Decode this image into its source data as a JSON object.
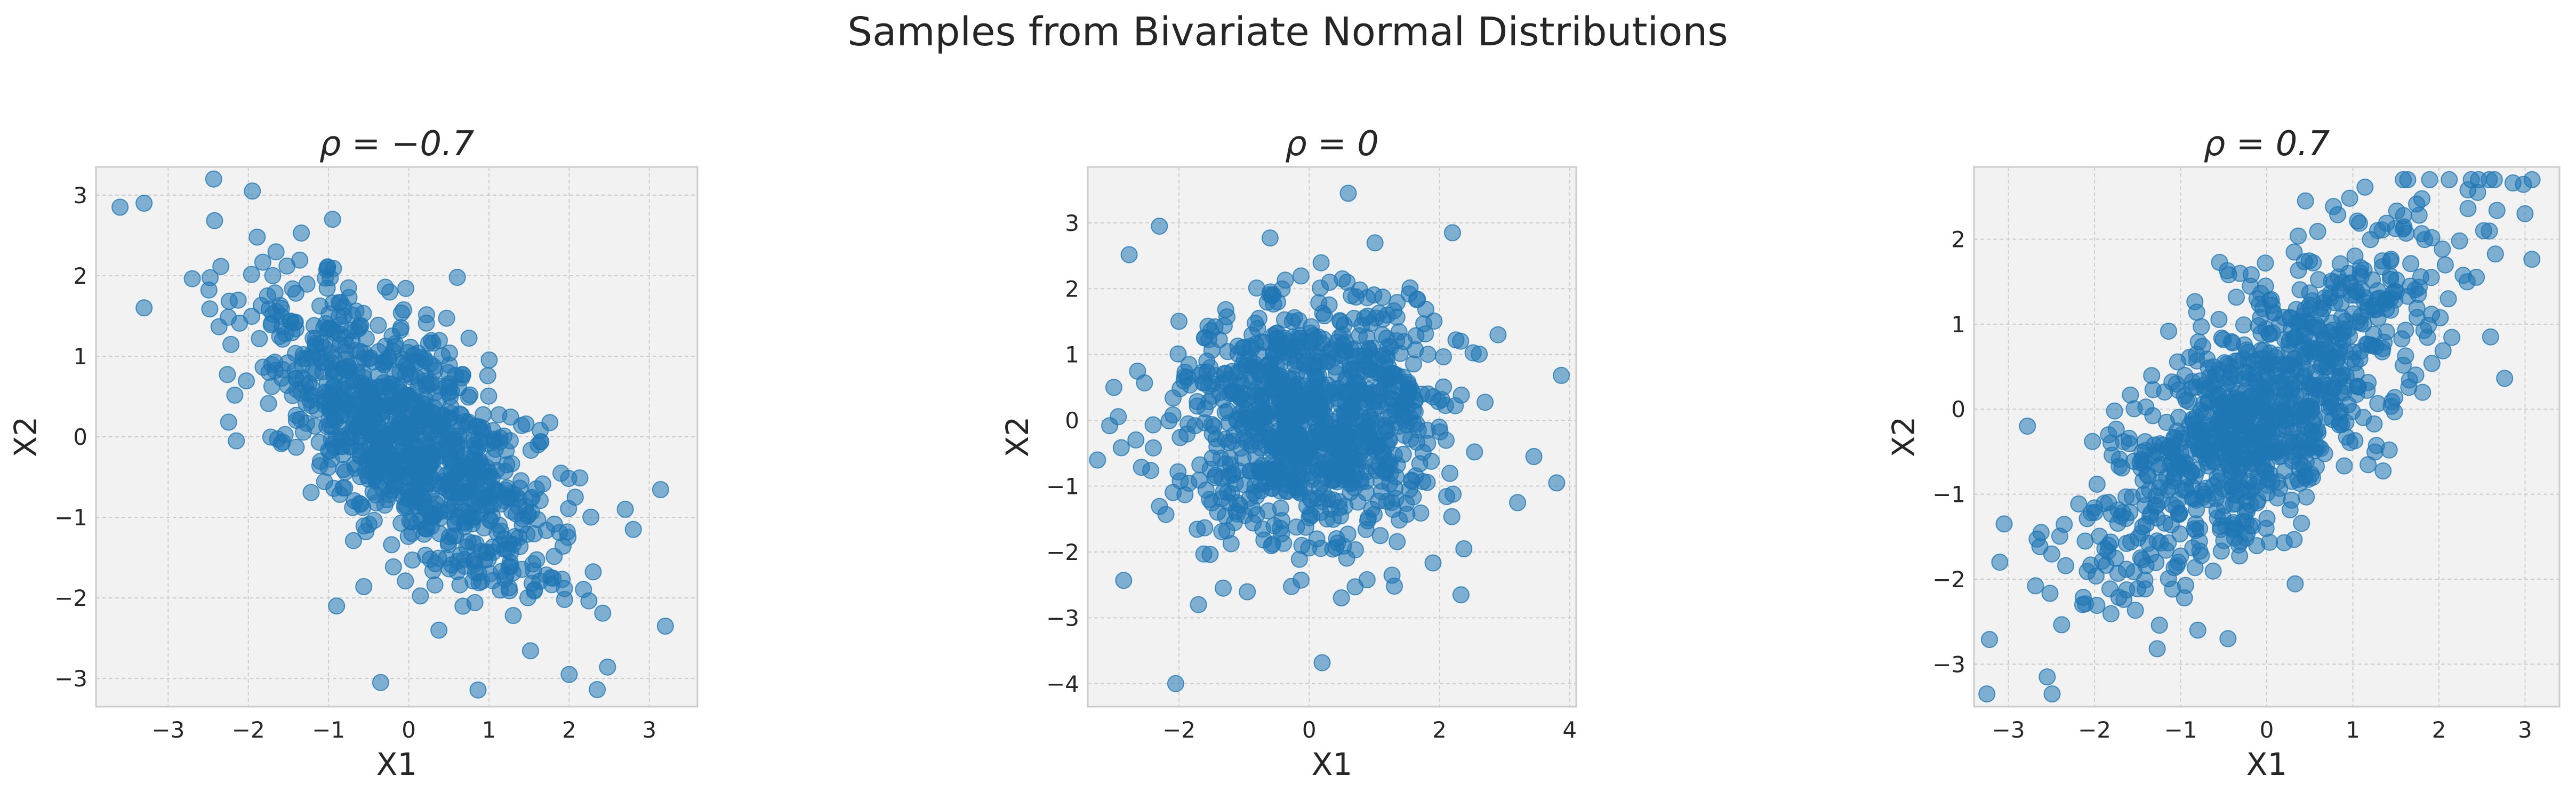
{
  "figure": {
    "suptitle": "Samples from Bivariate Normal Distributions",
    "background": "#ffffff",
    "axes_facecolor": "#f2f2f2",
    "grid_color": "#cccccc",
    "spine_color": "#cccccc",
    "point_color": "#1f77b4",
    "point_alpha": 0.55,
    "point_count_per_panel": 1000
  },
  "chart_data": [
    {
      "type": "scatter",
      "title": "ρ = −0.7",
      "rho": -0.7,
      "xlabel": "X1",
      "ylabel": "X2",
      "xlim": [
        -3.9,
        3.6
      ],
      "ylim": [
        -3.35,
        3.35
      ],
      "xticks": [
        -3,
        -2,
        -1,
        0,
        1,
        2,
        3
      ],
      "xtick_labels": [
        "−3",
        "−2",
        "−1",
        "0",
        "1",
        "2",
        "3"
      ],
      "yticks": [
        -3,
        -2,
        -1,
        0,
        1,
        2,
        3
      ],
      "ytick_labels": [
        "−3",
        "−2",
        "−1",
        "0",
        "1",
        "2",
        "3"
      ],
      "grid": true,
      "seed": 1,
      "outliers": [
        [
          -3.6,
          2.85
        ],
        [
          -3.3,
          2.9
        ],
        [
          -3.3,
          1.6
        ],
        [
          -1.95,
          3.05
        ],
        [
          -0.95,
          2.7
        ],
        [
          -0.9,
          -2.1
        ],
        [
          -0.35,
          -3.05
        ],
        [
          2.0,
          -2.95
        ],
        [
          3.2,
          -2.35
        ],
        [
          2.7,
          -0.9
        ],
        [
          2.8,
          -1.15
        ],
        [
          -2.15,
          -0.05
        ]
      ]
    },
    {
      "type": "scatter",
      "title": "ρ = 0",
      "rho": 0,
      "xlabel": "X1",
      "ylabel": "X2",
      "xlim": [
        -3.4,
        4.1
      ],
      "ylim": [
        -4.35,
        3.85
      ],
      "xticks": [
        -2,
        0,
        2,
        4
      ],
      "xtick_labels": [
        "−2",
        "0",
        "2",
        "4"
      ],
      "yticks": [
        -4,
        -3,
        -2,
        -1,
        0,
        1,
        2,
        3
      ],
      "ytick_labels": [
        "−4",
        "−3",
        "−2",
        "−1",
        "0",
        "1",
        "2",
        "3"
      ],
      "grid": true,
      "seed": 2,
      "outliers": [
        [
          -2.05,
          -4.0
        ],
        [
          -2.3,
          2.95
        ],
        [
          0.6,
          3.45
        ],
        [
          2.2,
          2.85
        ],
        [
          3.8,
          -0.95
        ],
        [
          3.45,
          -0.55
        ],
        [
          3.2,
          -1.25
        ],
        [
          -3.0,
          0.5
        ],
        [
          -1.7,
          -2.8
        ],
        [
          2.9,
          1.3
        ]
      ]
    },
    {
      "type": "scatter",
      "title": "ρ = 0.7",
      "rho": 0.7,
      "xlabel": "X1",
      "ylabel": "X2",
      "xlim": [
        -3.4,
        3.4
      ],
      "ylim": [
        -3.5,
        2.85
      ],
      "xticks": [
        -3,
        -2,
        -1,
        0,
        1,
        2,
        3
      ],
      "xtick_labels": [
        "−3",
        "−2",
        "−1",
        "0",
        "1",
        "2",
        "3"
      ],
      "yticks": [
        -3,
        -2,
        -1,
        0,
        1,
        2
      ],
      "ytick_labels": [
        "−3",
        "−2",
        "−1",
        "0",
        "1",
        "2"
      ],
      "grid": true,
      "seed": 3,
      "outliers": [
        [
          -2.55,
          -3.15
        ],
        [
          -3.05,
          -1.35
        ],
        [
          -3.1,
          -1.8
        ],
        [
          3.0,
          2.3
        ],
        [
          2.45,
          2.55
        ],
        [
          0.45,
          2.45
        ],
        [
          -0.8,
          -2.6
        ],
        [
          -0.45,
          -2.7
        ],
        [
          2.6,
          0.85
        ]
      ]
    }
  ]
}
